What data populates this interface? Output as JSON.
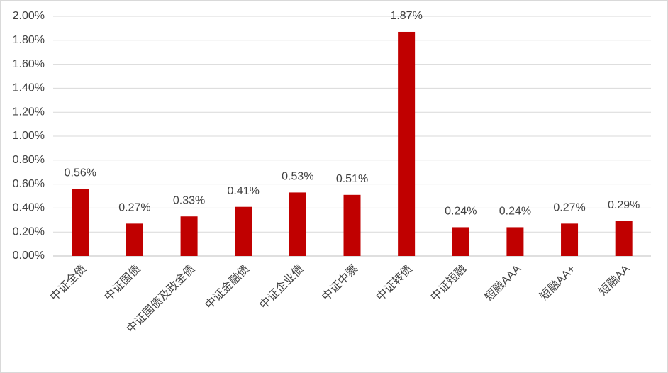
{
  "chart_data": {
    "type": "bar",
    "categories": [
      "中证全债",
      "中证国债",
      "中证国债及政金债",
      "中证金融债",
      "中证企业债",
      "中证中票",
      "中证转债",
      "中证短融",
      "短融AAA",
      "短融AA+",
      "短融AA"
    ],
    "values": [
      0.56,
      0.27,
      0.33,
      0.41,
      0.53,
      0.51,
      1.87,
      0.24,
      0.24,
      0.27,
      0.29
    ],
    "value_labels": [
      "0.56%",
      "0.27%",
      "0.33%",
      "0.41%",
      "0.53%",
      "0.51%",
      "1.87%",
      "0.24%",
      "0.24%",
      "0.27%",
      "0.29%"
    ],
    "color": "#c00000",
    "ylim": [
      0,
      2
    ],
    "yticks": [
      {
        "value": 0,
        "label": "0.00%"
      },
      {
        "value": 0.2,
        "label": "0.20%"
      },
      {
        "value": 0.4,
        "label": "0.40%"
      },
      {
        "value": 0.6,
        "label": "0.60%"
      },
      {
        "value": 0.8,
        "label": "0.80%"
      },
      {
        "value": 1,
        "label": "1.00%"
      },
      {
        "value": 1.2,
        "label": "1.20%"
      },
      {
        "value": 1.4,
        "label": "1.40%"
      },
      {
        "value": 1.6,
        "label": "1.60%"
      },
      {
        "value": 1.8,
        "label": "1.80%"
      },
      {
        "value": 2,
        "label": "2.00%"
      }
    ],
    "grid": true
  }
}
